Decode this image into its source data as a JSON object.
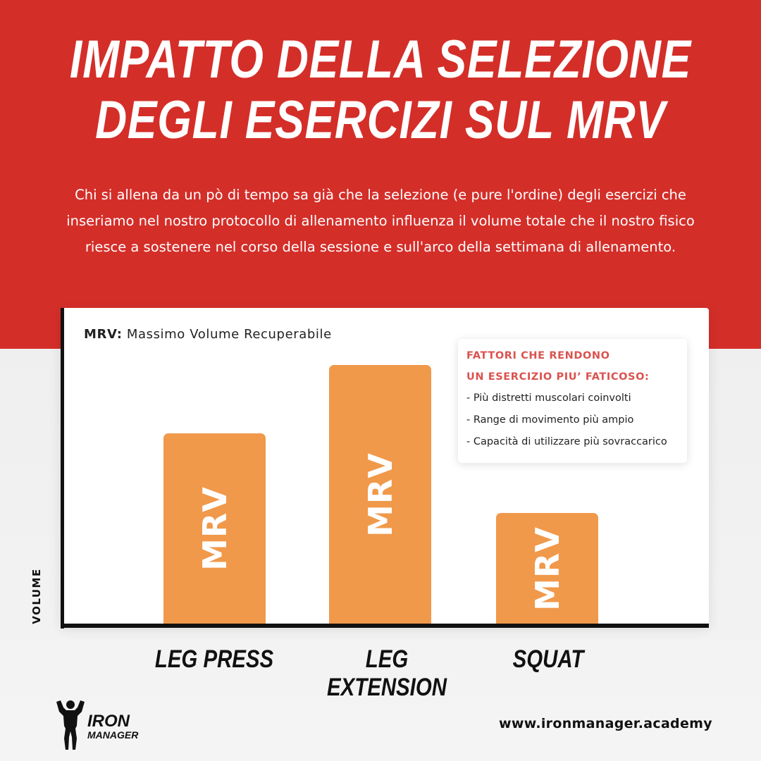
{
  "header": {
    "title_lines": [
      "IMPATTO DELLA SELEZIONE",
      "DEGLI ESERCIZI SUL MRV"
    ],
    "intro_lines": [
      "Chi si allena da un pò di tempo sa già che la selezione (e pure l'ordine) degli esercizi che",
      "inseriamo nel nostro protocollo di allenamento influenza il volume totale che il nostro fisico",
      "riesce a sostenere nel corso della sessione e sull'arco della settimana di allenamento."
    ]
  },
  "legend_note": {
    "label": "MRV:",
    "text": "Massimo Volume Recuperabile"
  },
  "factors_box": {
    "title_lines": [
      "FATTORI CHE RENDONO",
      "UN ESERCIZIO PIU’ FATICOSO:"
    ],
    "items": [
      "- Più distretti muscolari coinvolti",
      "- Range di movimento più ampio",
      "- Capacità di utilizzare più sovraccarico"
    ]
  },
  "colors": {
    "background_top": "#d42e29",
    "bar": "#f0994b",
    "factors_title": "#d9534f"
  },
  "chart_data": {
    "type": "bar",
    "title": "",
    "xlabel": "",
    "ylabel": "VOLUME",
    "categories": [
      "LEG PRESS",
      "LEG EXTENSION",
      "SQUAT"
    ],
    "bar_labels": [
      "MRV",
      "MRV",
      "MRV"
    ],
    "values": [
      270,
      367,
      157
    ],
    "ylim": [
      0,
      420
    ],
    "grid": false,
    "y_tick_labels": false
  },
  "footer": {
    "logo_words": [
      "IRON",
      "MANAGER"
    ],
    "website": "www.ironmanager.academy"
  }
}
